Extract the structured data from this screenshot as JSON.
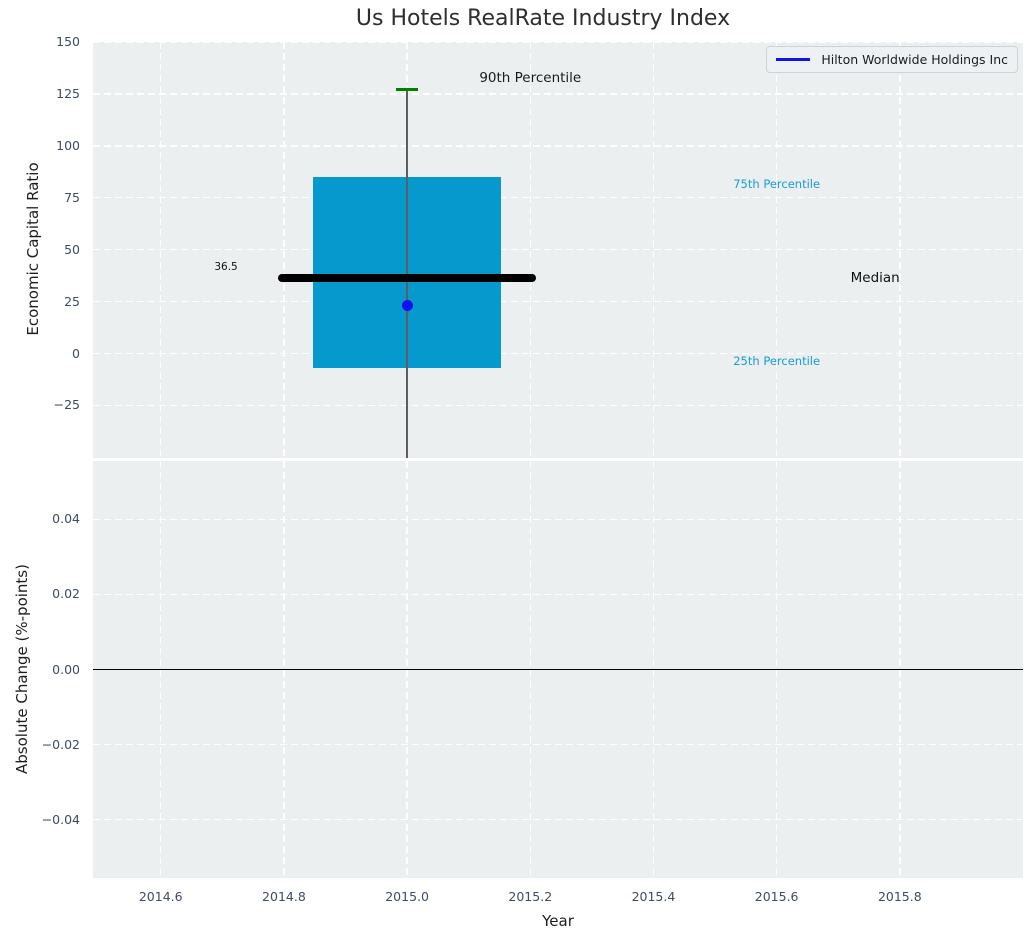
{
  "chart_data": [
    {
      "type": "boxplot",
      "title": "Us Hotels RealRate Industry Index",
      "ylabel": "Economic Capital Ratio",
      "xlim": [
        2014.49,
        2016.0
      ],
      "ylim": [
        -50.3,
        150
      ],
      "xticks": [
        2014.6,
        2014.8,
        2015.0,
        2015.2,
        2015.4,
        2015.6,
        2015.8
      ],
      "yticks": [
        150,
        125,
        100,
        75,
        50,
        25,
        0,
        -25
      ],
      "ytick_labels": [
        "150",
        "125",
        "100",
        "75",
        "50",
        "25",
        "0",
        "−25"
      ],
      "grid": true,
      "background": "#ebeff0",
      "grid_color": "#ffffff",
      "boxes": [
        {
          "x": 2015.0,
          "q1": -7,
          "median": 36.5,
          "q3": 85,
          "whisker_high": 127,
          "whisker_low_clipped": -50.3,
          "median_label": "36.5",
          "box_halfwidth": 0.153,
          "median_halfwidth": 0.209,
          "cap_halfwidth": 0.018,
          "fill_color": "#0599ce",
          "median_color": "#000000",
          "whisker_color": "#5e5e5e",
          "cap_color": "#008000"
        }
      ],
      "series": [
        {
          "name": "Hilton Worldwide Holdings Inc",
          "x": [
            2015.0
          ],
          "y": [
            23
          ],
          "color": "#1111ee",
          "marker": "circle"
        }
      ],
      "annotations": [
        {
          "text": "90th Percentile",
          "x": 2015.2,
          "y": 132.5,
          "color": "#1a1a1a",
          "font_size": 13.5
        },
        {
          "text": "75th Percentile",
          "x": 2015.6,
          "y": 81.5,
          "color": "#169dd6",
          "font_size": 11.5
        },
        {
          "text": "Median",
          "x": 2015.76,
          "y": 36.3,
          "color": "#111111",
          "font_size": 13.5
        },
        {
          "text": "25th Percentile",
          "x": 2015.6,
          "y": -3.7,
          "color": "#169dd6",
          "font_size": 11.5
        },
        {
          "text": "36.5",
          "x": 2014.706,
          "y": 41.5,
          "color": "#111111",
          "font_size": 10.5
        }
      ],
      "legend": {
        "position": "upper right",
        "entries": [
          {
            "label": "Hilton Worldwide Holdings Inc",
            "color": "#1111ee"
          }
        ]
      }
    },
    {
      "type": "line",
      "xlabel": "Year",
      "ylabel": "Absolute Change (%-points)",
      "xlim": [
        2014.49,
        2016.0
      ],
      "ylim": [
        -0.0555,
        0.0555
      ],
      "xticks": [
        2014.6,
        2014.8,
        2015.0,
        2015.2,
        2015.4,
        2015.6,
        2015.8
      ],
      "xtick_labels": [
        "2014.6",
        "2014.8",
        "2015.0",
        "2015.2",
        "2015.4",
        "2015.6",
        "2015.8"
      ],
      "yticks": [
        0.04,
        0.02,
        0,
        -0.02,
        -0.04
      ],
      "ytick_labels": [
        "0.04",
        "0.02",
        "0.00",
        "−0.02",
        "−0.04"
      ],
      "grid": true,
      "background": "#ebeff0",
      "grid_color": "#ffffff",
      "zero_line": {
        "y": 0,
        "color": "#000000"
      },
      "series": []
    }
  ]
}
